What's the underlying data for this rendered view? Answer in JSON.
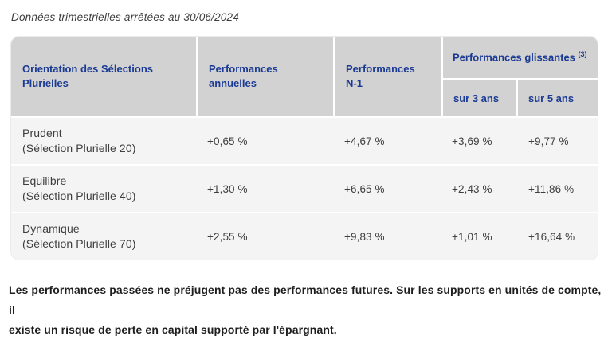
{
  "page": {
    "title_note": "Données trimestrielles arrêtées au 30/06/2024"
  },
  "colors": {
    "header_bg": "#d2d2d2",
    "row_bg": "#f5f4f4",
    "header_text": "#1a3a94",
    "body_text": "#3e3e3e",
    "disclaimer_text": "#1e1e1e",
    "divider": "#ffffff"
  },
  "table": {
    "columns": {
      "orientation": "Orientation des Sélections Plurielles",
      "annual": "Performances annuelles",
      "n1": "Performances N-1",
      "sliding": "Performances glissantes",
      "sliding_note_ref": "(3)",
      "sliding_sub_3y": "sur 3 ans",
      "sliding_sub_5y": "sur 5 ans"
    },
    "rows": [
      {
        "name": "Prudent",
        "subname": "(Sélection Plurielle 20)",
        "annual": "+0,65 %",
        "n1": "+4,67 %",
        "y3": "+3,69 %",
        "y5": "+9,77 %"
      },
      {
        "name": "Equilibre",
        "subname": "(Sélection Plurielle 40)",
        "annual": "+1,30 %",
        "n1": "+6,65 %",
        "y3": "+2,43 %",
        "y5": "+11,86 %"
      },
      {
        "name": "Dynamique",
        "subname": "(Sélection Plurielle 70)",
        "annual": "+2,55 %",
        "n1": "+9,83 %",
        "y3": "+1,01 %",
        "y5": "+16,64 %"
      }
    ]
  },
  "disclaimer": {
    "line1": "Les performances passées ne préjugent pas des performances futures. Sur les supports en unités de compte, il",
    "line2": "existe un risque de perte en capital supporté par l'épargnant."
  },
  "chart_data": {
    "type": "table",
    "title": "Données trimestrielles arrêtées au 30/06/2024",
    "columns": [
      "Orientation des Sélections Plurielles",
      "Performances annuelles",
      "Performances N-1",
      "Performances glissantes sur 3 ans",
      "Performances glissantes sur 5 ans"
    ],
    "rows": [
      [
        "Prudent (Sélection Plurielle 20)",
        "+0,65 %",
        "+4,67 %",
        "+3,69 %",
        "+9,77 %"
      ],
      [
        "Equilibre (Sélection Plurielle 40)",
        "+1,30 %",
        "+6,65 %",
        "+2,43 %",
        "+11,86 %"
      ],
      [
        "Dynamique (Sélection Plurielle 70)",
        "+2,55 %",
        "+9,83 %",
        "+1,01 %",
        "+16,64 %"
      ]
    ]
  }
}
